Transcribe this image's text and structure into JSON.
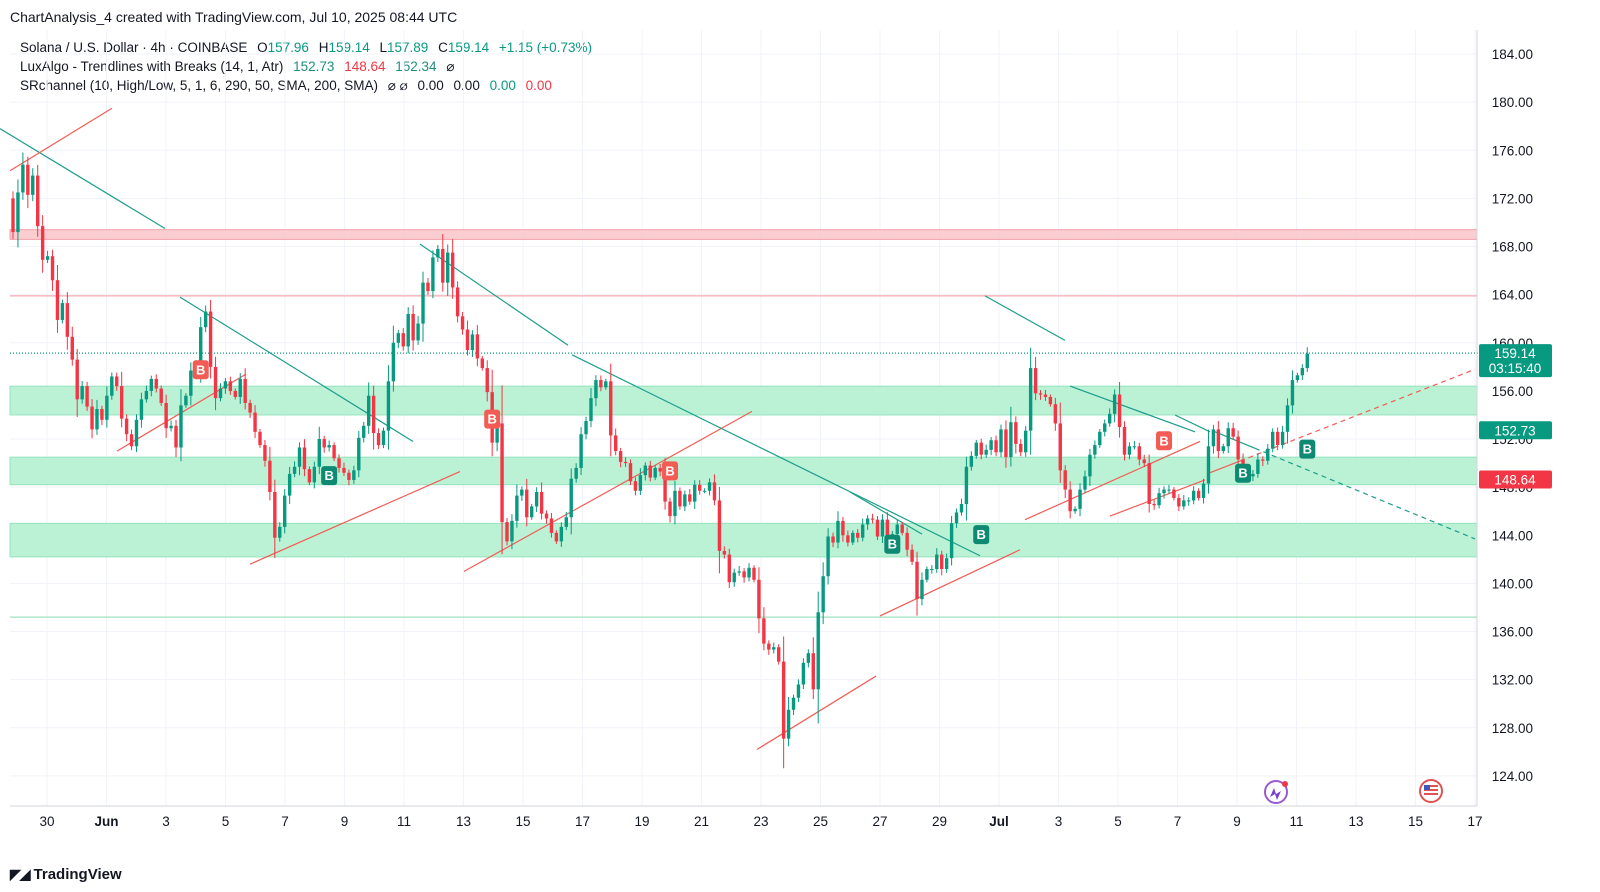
{
  "header": {
    "title": "ChartAnalysis_4 created with TradingView.com, Jul 10, 2025 08:44 UTC"
  },
  "legend": {
    "symbol": "Solana / U.S. Dollar · 4h · COINBASE",
    "o_label": "O",
    "o": "157.96",
    "h_label": "H",
    "h": "159.14",
    "l_label": "L",
    "l": "157.89",
    "c_label": "C",
    "c": "159.14",
    "change": "+1.15 (+0.73%)",
    "ind1_name": "LuxAlgo - Trendlines with Breaks (14, 1, Atr)",
    "ind1_v1": "152.73",
    "ind1_v2": "148.64",
    "ind1_v3": "152.34",
    "ind1_icon": "⌀",
    "ind2_name": "SRchannel (10, High/Low, 5, 1, 6, 290, 50, SMA, 200, SMA)",
    "ind2_icons": "⌀ ⌀",
    "ind2_v1": "0.00",
    "ind2_v2": "0.00",
    "ind2_v3": "0.00",
    "ind2_v4": "0.00"
  },
  "footer": {
    "brand": "TradingView"
  },
  "colors": {
    "up": "#089981",
    "down": "#f23645",
    "zone_green": "#b7f0d3",
    "zone_red": "#f9c4c9",
    "trend_down": "#1e9e8c",
    "trend_up": "#f25c54",
    "grid": "#f0f3fa"
  },
  "chart_data": {
    "type": "candlestick",
    "ylim": [
      121.5,
      186
    ],
    "yticks": [
      "184.00",
      "180.00",
      "176.00",
      "172.00",
      "168.00",
      "164.00",
      "160.00",
      "156.00",
      "152.00",
      "148.00",
      "144.00",
      "140.00",
      "136.00",
      "132.00",
      "128.00",
      "124.00"
    ],
    "xticks": [
      {
        "label": "30",
        "d": 0
      },
      {
        "label": "Jun",
        "d": 2,
        "bold": true
      },
      {
        "label": "3",
        "d": 4
      },
      {
        "label": "5",
        "d": 6
      },
      {
        "label": "7",
        "d": 8
      },
      {
        "label": "9",
        "d": 10
      },
      {
        "label": "11",
        "d": 12
      },
      {
        "label": "13",
        "d": 14
      },
      {
        "label": "15",
        "d": 16
      },
      {
        "label": "17",
        "d": 18
      },
      {
        "label": "19",
        "d": 20
      },
      {
        "label": "21",
        "d": 22
      },
      {
        "label": "23",
        "d": 24
      },
      {
        "label": "25",
        "d": 26
      },
      {
        "label": "27",
        "d": 28
      },
      {
        "label": "29",
        "d": 30
      },
      {
        "label": "Jul",
        "d": 32,
        "bold": true
      },
      {
        "label": "3",
        "d": 34
      },
      {
        "label": "5",
        "d": 36
      },
      {
        "label": "7",
        "d": 38
      },
      {
        "label": "9",
        "d": 40
      },
      {
        "label": "11",
        "d": 42
      },
      {
        "label": "13",
        "d": 44
      },
      {
        "label": "15",
        "d": 46
      },
      {
        "label": "17",
        "d": 48
      }
    ],
    "price_labels": [
      {
        "value": 159.14,
        "text": "159.14",
        "sub": "03:15:40",
        "color": "#089981"
      },
      {
        "value": 152.73,
        "text": "152.73",
        "color": "#089981"
      },
      {
        "value": 148.64,
        "text": "148.64",
        "color": "#f23645"
      }
    ],
    "zones": [
      {
        "from": 168.6,
        "to": 169.4,
        "kind": "red"
      },
      {
        "from": 154.0,
        "to": 156.4,
        "kind": "green"
      },
      {
        "from": 148.2,
        "to": 150.5,
        "kind": "green"
      },
      {
        "from": 142.2,
        "to": 145.0,
        "kind": "green"
      }
    ],
    "levels": [
      {
        "value": 163.9,
        "color": "#f7a8ae"
      },
      {
        "value": 137.2,
        "color": "#9fe3c2"
      },
      {
        "value": 159.14,
        "color": "#089981",
        "dotted": true
      }
    ],
    "closes": [
      169.2,
      172.5,
      174.8,
      172.3,
      173.9,
      169.7,
      166.9,
      167.2,
      165.2,
      161.9,
      163.3,
      160.5,
      158.6,
      155.3,
      156.4,
      154.7,
      152.8,
      154.5,
      153.6,
      155.6,
      157.2,
      156.4,
      153.7,
      152.4,
      151.4,
      153.6,
      155.3,
      156.0,
      157.0,
      156.2,
      155.0,
      152.9,
      153.1,
      151.3,
      154.8,
      155.6,
      157.7,
      158.1,
      161.3,
      162.6,
      158.0,
      155.4,
      156.2,
      156.8,
      156.0,
      155.5,
      157.0,
      155.0,
      154.2,
      152.6,
      151.5,
      150.2,
      147.6,
      143.8,
      144.7,
      147.3,
      149.1,
      149.7,
      151.3,
      149.5,
      148.4,
      149.7,
      152.0,
      151.3,
      151.5,
      150.4,
      149.6,
      149.2,
      148.6,
      149.4,
      152.1,
      153.1,
      155.6,
      152.5,
      151.5,
      152.7,
      156.8,
      160.0,
      160.8,
      159.7,
      162.4,
      160.2,
      161.6,
      165.0,
      164.3,
      167.1,
      167.8,
      165.0,
      167.5,
      164.6,
      162.2,
      161.1,
      159.4,
      160.7,
      158.7,
      157.9,
      155.9,
      151.7,
      153.3,
      145.1,
      143.5,
      145.2,
      147.3,
      147.8,
      145.5,
      146.4,
      147.6,
      145.8,
      145.4,
      144.2,
      143.5,
      144.7,
      145.5,
      148.7,
      149.6,
      152.4,
      153.5,
      155.4,
      156.9,
      156.3,
      156.8,
      152.3,
      151.0,
      150.1,
      150.0,
      148.5,
      147.7,
      149.0,
      149.8,
      148.8,
      149.6,
      149.3,
      146.8,
      145.6,
      147.7,
      146.4,
      147.4,
      146.8,
      148.2,
      147.7,
      147.7,
      148.4,
      146.9,
      142.7,
      142.4,
      140.1,
      140.9,
      141.0,
      140.5,
      141.3,
      140.3,
      137.1,
      135.0,
      134.5,
      134.7,
      133.5,
      127.1,
      129.5,
      130.5,
      131.6,
      133.4,
      134.2,
      131.2,
      137.6,
      140.6,
      143.9,
      143.4,
      145.2,
      144.0,
      143.4,
      144.2,
      143.8,
      144.9,
      145.4,
      145.3,
      143.9,
      145.3,
      143.9,
      144.1,
      144.9,
      144.2,
      142.8,
      141.8,
      138.7,
      140.3,
      141.2,
      141.2,
      142.4,
      141.2,
      142.1,
      145.0,
      145.9,
      146.6,
      149.7,
      150.6,
      151.7,
      150.7,
      151.1,
      151.9,
      150.9,
      152.8,
      150.5,
      153.4,
      151.6,
      150.9,
      152.7,
      157.9,
      155.8,
      155.7,
      155.5,
      154.9,
      153.3,
      149.4,
      147.8,
      146.0,
      146.2,
      147.8,
      148.9,
      150.7,
      151.5,
      152.6,
      153.3,
      154.1,
      155.7,
      153.0,
      150.7,
      151.4,
      151.4,
      150.3,
      150.0,
      146.6,
      146.5,
      147.5,
      147.8,
      147.8,
      147.1,
      146.4,
      146.9,
      146.9,
      147.7,
      147.1,
      148.3,
      151.4,
      152.8,
      151.0,
      151.4,
      152.9,
      152.2,
      150.3,
      149.0,
      148.9,
      149.1,
      150.3,
      150.2,
      151.2,
      152.6,
      151.5,
      152.6,
      154.8,
      156.9,
      157.3,
      157.9,
      159.1
    ],
    "trend_lines": [
      {
        "kind": "down",
        "x1": 0,
        "y1": 177.8,
        "x2": 165,
        "y2": 169.5
      },
      {
        "kind": "up",
        "x1": 10,
        "y1": 174.3,
        "x2": 112,
        "y2": 179.5
      },
      {
        "kind": "down",
        "x1": 180,
        "y1": 163.8,
        "x2": 413,
        "y2": 151.8
      },
      {
        "kind": "up",
        "x1": 117,
        "y1": 151.0,
        "x2": 246,
        "y2": 157.4
      },
      {
        "kind": "up",
        "x1": 250,
        "y1": 141.6,
        "x2": 460,
        "y2": 149.3
      },
      {
        "kind": "down",
        "x1": 420,
        "y1": 168.2,
        "x2": 568,
        "y2": 159.8
      },
      {
        "kind": "up",
        "x1": 464,
        "y1": 141.0,
        "x2": 752,
        "y2": 154.3
      },
      {
        "kind": "down",
        "x1": 572,
        "y1": 159.0,
        "x2": 980,
        "y2": 142.3
      },
      {
        "kind": "up",
        "x1": 757,
        "y1": 126.2,
        "x2": 876,
        "y2": 132.3
      },
      {
        "kind": "down",
        "x1": 850,
        "y1": 147.6,
        "x2": 922,
        "y2": 144.1
      },
      {
        "kind": "up",
        "x1": 880,
        "y1": 137.3,
        "x2": 1020,
        "y2": 142.8
      },
      {
        "kind": "down",
        "x1": 985,
        "y1": 163.9,
        "x2": 1065,
        "y2": 160.2
      },
      {
        "kind": "up",
        "x1": 1025,
        "y1": 145.3,
        "x2": 1200,
        "y2": 151.8
      },
      {
        "kind": "down",
        "x1": 1070,
        "y1": 156.4,
        "x2": 1195,
        "y2": 152.6
      },
      {
        "kind": "up",
        "x1": 1110,
        "y1": 145.6,
        "x2": 1205,
        "y2": 148.6
      },
      {
        "kind": "down",
        "x1": 1175,
        "y1": 154.0,
        "x2": 1210,
        "y2": 152.6
      },
      {
        "kind": "up",
        "x1": 1210,
        "y1": 149.2,
        "x2": 1475,
        "y2": 157.8,
        "dashed_from": 1240
      },
      {
        "kind": "down",
        "x1": 1215,
        "y1": 152.6,
        "x2": 1475,
        "y2": 143.7,
        "dashed_from": 1255
      }
    ],
    "markers": [
      {
        "text": "B",
        "kind": "down",
        "i": 38,
        "at": 157.8
      },
      {
        "text": "B",
        "kind": "up",
        "i": 64,
        "at": 149.0
      },
      {
        "text": "B",
        "kind": "down",
        "i": 97,
        "at": 153.7
      },
      {
        "text": "B",
        "kind": "down",
        "i": 133,
        "at": 149.4
      },
      {
        "text": "B",
        "kind": "up",
        "i": 178,
        "at": 143.3
      },
      {
        "text": "B",
        "kind": "up",
        "i": 196,
        "at": 144.1
      },
      {
        "text": "B",
        "kind": "down",
        "i": 233,
        "at": 151.9
      },
      {
        "text": "B",
        "kind": "up",
        "i": 249,
        "at": 149.2
      },
      {
        "text": "B",
        "kind": "up",
        "i": 262,
        "at": 151.2
      }
    ]
  }
}
